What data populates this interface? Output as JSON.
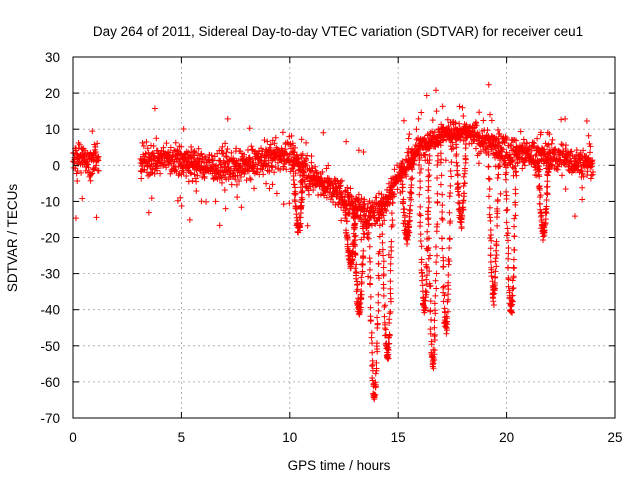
{
  "chart_data": {
    "type": "scatter",
    "title": "Day 264 of 2011, Sidereal Day-to-day VTEC variation (SDTVAR) for receiver ceu1",
    "xlabel": "GPS time / hours",
    "ylabel": "SDTVAR / TECUs",
    "xlim": [
      0,
      25
    ],
    "ylim": [
      -70,
      30
    ],
    "xticks": [
      0,
      5,
      10,
      15,
      20,
      25
    ],
    "yticks": [
      -70,
      -60,
      -50,
      -40,
      -30,
      -20,
      -10,
      0,
      10,
      20,
      30
    ],
    "grid": true,
    "marker": "+",
    "color": "#ff0000",
    "series": [
      {
        "name": "SDTVAR",
        "baseline": [
          [
            0.0,
            2
          ],
          [
            1.2,
            1
          ],
          [
            3.1,
            1
          ],
          [
            4.5,
            2
          ],
          [
            6.0,
            0
          ],
          [
            7.5,
            -1
          ],
          [
            9.0,
            2
          ],
          [
            10.0,
            3
          ],
          [
            11.0,
            -3
          ],
          [
            12.5,
            -9
          ],
          [
            13.5,
            -14
          ],
          [
            14.2,
            -12
          ],
          [
            15.0,
            -3
          ],
          [
            16.0,
            5
          ],
          [
            17.0,
            9
          ],
          [
            18.0,
            9
          ],
          [
            19.0,
            7
          ],
          [
            20.0,
            4
          ],
          [
            21.0,
            3
          ],
          [
            22.5,
            2
          ],
          [
            24.0,
            0
          ]
        ],
        "gaps": [
          [
            1.2,
            3.1
          ]
        ],
        "dips": [
          {
            "center_hours": 10.4,
            "min_tecu": -17
          },
          {
            "center_hours": 12.8,
            "min_tecu": -27
          },
          {
            "center_hours": 13.2,
            "min_tecu": -40
          },
          {
            "center_hours": 13.9,
            "min_tecu": -64
          },
          {
            "center_hours": 14.5,
            "min_tecu": -53
          },
          {
            "center_hours": 15.4,
            "min_tecu": -20
          },
          {
            "center_hours": 16.2,
            "min_tecu": -40
          },
          {
            "center_hours": 16.6,
            "min_tecu": -55
          },
          {
            "center_hours": 17.2,
            "min_tecu": -45
          },
          {
            "center_hours": 17.9,
            "min_tecu": -15
          },
          {
            "center_hours": 19.4,
            "min_tecu": -36
          },
          {
            "center_hours": 20.2,
            "min_tecu": -40
          },
          {
            "center_hours": 21.7,
            "min_tecu": -19
          }
        ]
      }
    ]
  }
}
